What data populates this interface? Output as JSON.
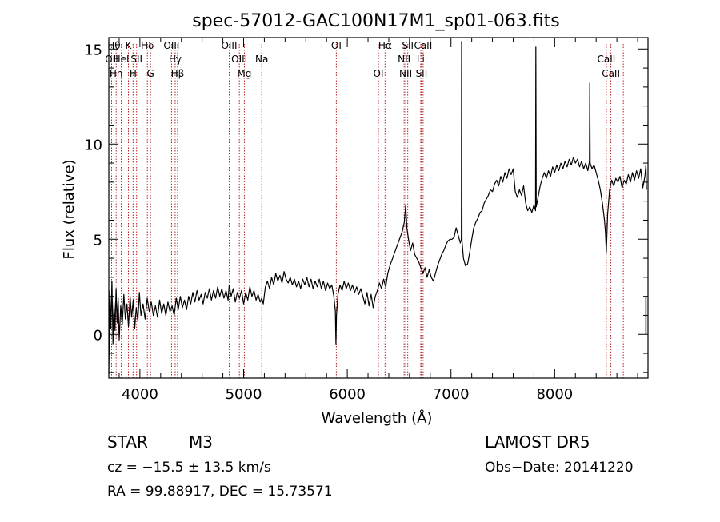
{
  "header": {
    "title": "spec-57012-GAC100N17M1_sp01-063.fits"
  },
  "chart_data": {
    "type": "line",
    "title": "spec-57012-GAC100N17M1_sp01-063.fits",
    "xlabel": "Wavelength (Å)",
    "ylabel": "Flux (relative)",
    "xlim": [
      3700,
      8900
    ],
    "ylim": [
      -2.3,
      15.6
    ],
    "x_ticks": [
      4000,
      5000,
      6000,
      7000,
      8000
    ],
    "y_ticks": [
      0,
      5,
      10,
      15
    ],
    "grid": false,
    "series": [
      {
        "color": "#000000",
        "points": [
          [
            3700,
            -2.1
          ],
          [
            3710,
            2.3
          ],
          [
            3720,
            0.3
          ],
          [
            3730,
            2.8
          ],
          [
            3740,
            -0.5
          ],
          [
            3750,
            1.7
          ],
          [
            3760,
            0.2
          ],
          [
            3770,
            2.4
          ],
          [
            3780,
            0.6
          ],
          [
            3790,
            1.9
          ],
          [
            3800,
            -0.3
          ],
          [
            3815,
            1.5
          ],
          [
            3830,
            0.5
          ],
          [
            3845,
            2.1
          ],
          [
            3860,
            0.8
          ],
          [
            3875,
            1.6
          ],
          [
            3890,
            0.4
          ],
          [
            3905,
            2.0
          ],
          [
            3920,
            0.9
          ],
          [
            3935,
            1.8
          ],
          [
            3950,
            0.3
          ],
          [
            3965,
            1.4
          ],
          [
            3980,
            0.7
          ],
          [
            3995,
            2.2
          ],
          [
            4010,
            1.0
          ],
          [
            4030,
            1.6
          ],
          [
            4050,
            0.8
          ],
          [
            4070,
            1.9
          ],
          [
            4090,
            1.2
          ],
          [
            4110,
            1.7
          ],
          [
            4130,
            1.0
          ],
          [
            4150,
            1.5
          ],
          [
            4170,
            0.9
          ],
          [
            4190,
            1.8
          ],
          [
            4210,
            1.1
          ],
          [
            4230,
            1.6
          ],
          [
            4250,
            1.0
          ],
          [
            4270,
            1.7
          ],
          [
            4290,
            1.2
          ],
          [
            4310,
            1.5
          ],
          [
            4330,
            1.0
          ],
          [
            4350,
            1.9
          ],
          [
            4370,
            1.3
          ],
          [
            4390,
            2.0
          ],
          [
            4410,
            1.4
          ],
          [
            4430,
            1.8
          ],
          [
            4450,
            1.3
          ],
          [
            4470,
            2.0
          ],
          [
            4490,
            1.6
          ],
          [
            4510,
            2.2
          ],
          [
            4530,
            1.7
          ],
          [
            4550,
            2.3
          ],
          [
            4570,
            1.8
          ],
          [
            4590,
            2.1
          ],
          [
            4610,
            1.6
          ],
          [
            4630,
            2.2
          ],
          [
            4650,
            1.9
          ],
          [
            4670,
            2.4
          ],
          [
            4690,
            1.8
          ],
          [
            4710,
            2.3
          ],
          [
            4730,
            1.9
          ],
          [
            4750,
            2.5
          ],
          [
            4770,
            2.0
          ],
          [
            4790,
            2.4
          ],
          [
            4810,
            1.9
          ],
          [
            4830,
            2.3
          ],
          [
            4850,
            1.8
          ],
          [
            4861,
            2.6
          ],
          [
            4880,
            2.0
          ],
          [
            4900,
            2.4
          ],
          [
            4920,
            1.7
          ],
          [
            4940,
            2.2
          ],
          [
            4960,
            1.9
          ],
          [
            4980,
            2.3
          ],
          [
            5000,
            1.6
          ],
          [
            5020,
            2.2
          ],
          [
            5040,
            1.8
          ],
          [
            5060,
            2.5
          ],
          [
            5080,
            2.0
          ],
          [
            5100,
            2.3
          ],
          [
            5120,
            1.8
          ],
          [
            5140,
            2.1
          ],
          [
            5160,
            1.7
          ],
          [
            5175,
            1.9
          ],
          [
            5190,
            1.6
          ],
          [
            5210,
            2.5
          ],
          [
            5230,
            2.8
          ],
          [
            5250,
            2.4
          ],
          [
            5270,
            3.0
          ],
          [
            5290,
            2.6
          ],
          [
            5310,
            3.2
          ],
          [
            5330,
            2.8
          ],
          [
            5350,
            3.1
          ],
          [
            5370,
            2.7
          ],
          [
            5390,
            3.3
          ],
          [
            5410,
            2.9
          ],
          [
            5430,
            2.7
          ],
          [
            5450,
            3.0
          ],
          [
            5470,
            2.6
          ],
          [
            5490,
            2.9
          ],
          [
            5510,
            2.5
          ],
          [
            5530,
            2.8
          ],
          [
            5550,
            2.4
          ],
          [
            5570,
            2.9
          ],
          [
            5590,
            2.6
          ],
          [
            5610,
            3.0
          ],
          [
            5630,
            2.5
          ],
          [
            5650,
            2.9
          ],
          [
            5670,
            2.4
          ],
          [
            5690,
            2.8
          ],
          [
            5710,
            2.5
          ],
          [
            5730,
            2.9
          ],
          [
            5750,
            2.4
          ],
          [
            5770,
            2.8
          ],
          [
            5790,
            2.3
          ],
          [
            5810,
            2.7
          ],
          [
            5830,
            2.4
          ],
          [
            5850,
            2.6
          ],
          [
            5870,
            2.0
          ],
          [
            5885,
            1.2
          ],
          [
            5890,
            -0.5
          ],
          [
            5896,
            1.0
          ],
          [
            5910,
            2.1
          ],
          [
            5930,
            2.6
          ],
          [
            5950,
            2.3
          ],
          [
            5970,
            2.8
          ],
          [
            5990,
            2.4
          ],
          [
            6010,
            2.7
          ],
          [
            6030,
            2.3
          ],
          [
            6050,
            2.6
          ],
          [
            6070,
            2.2
          ],
          [
            6090,
            2.5
          ],
          [
            6110,
            2.1
          ],
          [
            6130,
            2.4
          ],
          [
            6150,
            2.0
          ],
          [
            6170,
            1.6
          ],
          [
            6190,
            2.2
          ],
          [
            6210,
            1.5
          ],
          [
            6230,
            2.1
          ],
          [
            6250,
            1.4
          ],
          [
            6270,
            2.0
          ],
          [
            6290,
            2.3
          ],
          [
            6310,
            2.7
          ],
          [
            6330,
            2.4
          ],
          [
            6350,
            2.9
          ],
          [
            6370,
            2.5
          ],
          [
            6390,
            3.2
          ],
          [
            6410,
            3.6
          ],
          [
            6430,
            3.9
          ],
          [
            6450,
            4.2
          ],
          [
            6470,
            4.5
          ],
          [
            6490,
            4.8
          ],
          [
            6510,
            5.1
          ],
          [
            6530,
            5.4
          ],
          [
            6550,
            5.9
          ],
          [
            6563,
            6.8
          ],
          [
            6575,
            5.6
          ],
          [
            6590,
            5.0
          ],
          [
            6610,
            4.4
          ],
          [
            6630,
            4.8
          ],
          [
            6650,
            4.2
          ],
          [
            6670,
            4.0
          ],
          [
            6690,
            3.8
          ],
          [
            6710,
            3.5
          ],
          [
            6730,
            3.2
          ],
          [
            6750,
            3.5
          ],
          [
            6770,
            3.0
          ],
          [
            6790,
            3.4
          ],
          [
            6810,
            3.0
          ],
          [
            6830,
            2.8
          ],
          [
            6850,
            3.2
          ],
          [
            6870,
            3.6
          ],
          [
            6890,
            3.9
          ],
          [
            6910,
            4.2
          ],
          [
            6930,
            4.4
          ],
          [
            6950,
            4.7
          ],
          [
            6970,
            4.9
          ],
          [
            6990,
            5.0
          ],
          [
            7010,
            5.0
          ],
          [
            7030,
            5.1
          ],
          [
            7050,
            5.6
          ],
          [
            7070,
            5.2
          ],
          [
            7090,
            4.8
          ],
          [
            7100,
            5.0
          ],
          [
            7102,
            15.4
          ],
          [
            7106,
            4.9
          ],
          [
            7120,
            4.0
          ],
          [
            7140,
            3.6
          ],
          [
            7160,
            3.7
          ],
          [
            7180,
            4.3
          ],
          [
            7200,
            5.0
          ],
          [
            7220,
            5.6
          ],
          [
            7240,
            5.9
          ],
          [
            7260,
            6.1
          ],
          [
            7280,
            6.4
          ],
          [
            7300,
            6.5
          ],
          [
            7320,
            6.9
          ],
          [
            7340,
            7.1
          ],
          [
            7360,
            7.3
          ],
          [
            7380,
            7.6
          ],
          [
            7400,
            7.5
          ],
          [
            7420,
            7.9
          ],
          [
            7440,
            8.1
          ],
          [
            7460,
            7.8
          ],
          [
            7480,
            8.3
          ],
          [
            7500,
            8.0
          ],
          [
            7520,
            8.5
          ],
          [
            7540,
            8.2
          ],
          [
            7560,
            8.7
          ],
          [
            7580,
            8.4
          ],
          [
            7600,
            8.7
          ],
          [
            7620,
            7.5
          ],
          [
            7640,
            7.2
          ],
          [
            7660,
            7.6
          ],
          [
            7680,
            7.3
          ],
          [
            7700,
            7.8
          ],
          [
            7720,
            6.9
          ],
          [
            7740,
            6.5
          ],
          [
            7760,
            6.7
          ],
          [
            7780,
            6.4
          ],
          [
            7800,
            6.8
          ],
          [
            7815,
            6.5
          ],
          [
            7818,
            15.1
          ],
          [
            7822,
            6.7
          ],
          [
            7840,
            7.2
          ],
          [
            7860,
            7.8
          ],
          [
            7880,
            8.2
          ],
          [
            7900,
            8.5
          ],
          [
            7920,
            8.2
          ],
          [
            7940,
            8.6
          ],
          [
            7960,
            8.3
          ],
          [
            7980,
            8.8
          ],
          [
            8000,
            8.5
          ],
          [
            8020,
            8.9
          ],
          [
            8040,
            8.6
          ],
          [
            8060,
            9.0
          ],
          [
            8080,
            8.7
          ],
          [
            8100,
            9.1
          ],
          [
            8120,
            8.8
          ],
          [
            8140,
            9.2
          ],
          [
            8160,
            8.9
          ],
          [
            8180,
            9.3
          ],
          [
            8200,
            9.0
          ],
          [
            8220,
            9.2
          ],
          [
            8240,
            8.8
          ],
          [
            8260,
            9.1
          ],
          [
            8280,
            8.7
          ],
          [
            8300,
            9.0
          ],
          [
            8320,
            8.6
          ],
          [
            8335,
            9.1
          ],
          [
            8338,
            13.2
          ],
          [
            8342,
            9.0
          ],
          [
            8360,
            8.7
          ],
          [
            8380,
            8.9
          ],
          [
            8400,
            8.5
          ],
          [
            8420,
            8.1
          ],
          [
            8440,
            7.6
          ],
          [
            8460,
            6.9
          ],
          [
            8480,
            6.0
          ],
          [
            8490,
            5.3
          ],
          [
            8498,
            4.3
          ],
          [
            8510,
            6.3
          ],
          [
            8530,
            7.6
          ],
          [
            8550,
            8.1
          ],
          [
            8570,
            7.8
          ],
          [
            8590,
            8.2
          ],
          [
            8610,
            8.0
          ],
          [
            8630,
            8.3
          ],
          [
            8650,
            7.7
          ],
          [
            8670,
            8.1
          ],
          [
            8690,
            7.9
          ],
          [
            8710,
            8.4
          ],
          [
            8730,
            8.0
          ],
          [
            8750,
            8.5
          ],
          [
            8770,
            8.1
          ],
          [
            8790,
            8.6
          ],
          [
            8810,
            8.2
          ],
          [
            8830,
            8.7
          ],
          [
            8850,
            7.7
          ],
          [
            8870,
            8.3
          ],
          [
            8880,
            8.9
          ],
          [
            8885,
            7.6
          ]
        ]
      }
    ],
    "vertical_marker": {
      "x": 8880,
      "y_from": 0,
      "y_to": 2.0
    },
    "reference_lines": [
      {
        "x": 3727,
        "row": 1,
        "label": "OII"
      },
      {
        "x": 3750,
        "row": 0,
        "label": "Hθ"
      },
      {
        "x": 3771,
        "row": 2,
        "label": "Hη"
      },
      {
        "x": 3820,
        "row": 1,
        "label": "HeI"
      },
      {
        "x": 3889,
        "row": 0,
        "label": "K"
      },
      {
        "x": 3934,
        "row": 2,
        "label": "H"
      },
      {
        "x": 3968,
        "row": 1,
        "label": "SII"
      },
      {
        "x": 4072,
        "row": 0,
        "label": "Hδ"
      },
      {
        "x": 4102,
        "row": 2,
        "label": "G"
      },
      {
        "x": 4305,
        "row": 0,
        "label": "OIII"
      },
      {
        "x": 4340,
        "row": 1,
        "label": "Hγ"
      },
      {
        "x": 4363,
        "row": 2,
        "label": "Hβ"
      },
      {
        "x": 4861,
        "row": 0,
        "label": "OIII"
      },
      {
        "x": 4959,
        "row": 1,
        "label": "OIII"
      },
      {
        "x": 5007,
        "row": 2,
        "label": "Mg"
      },
      {
        "x": 5175,
        "row": 1,
        "label": "Na"
      },
      {
        "x": 5894,
        "row": 0,
        "label": "OI"
      },
      {
        "x": 6300,
        "row": 2,
        "label": "OI"
      },
      {
        "x": 6364,
        "row": 0,
        "label": "Hα"
      },
      {
        "x": 6548,
        "row": 1,
        "label": "NII"
      },
      {
        "x": 6563,
        "row": 2,
        "label": "NII"
      },
      {
        "x": 6583,
        "row": 0,
        "label": "SII"
      },
      {
        "x": 6708,
        "row": 1,
        "label": "Li"
      },
      {
        "x": 6716,
        "row": 2,
        "label": "SII"
      },
      {
        "x": 6731,
        "row": 0,
        "label": "CaII"
      },
      {
        "x": 8498,
        "row": 1,
        "label": "CaII"
      },
      {
        "x": 8542,
        "row": 2,
        "label": "CaII"
      },
      {
        "x": 8662,
        "row": 0,
        "label": ""
      }
    ]
  },
  "footer": {
    "object_class": "STAR",
    "subclass": "M3",
    "survey": "LAMOST DR5",
    "redshift_text": "cz = −15.5 ± 13.5 km/s",
    "obs_date": "Obs−Date: 20141220",
    "coords": "RA =  99.88917, DEC =  15.73571"
  }
}
